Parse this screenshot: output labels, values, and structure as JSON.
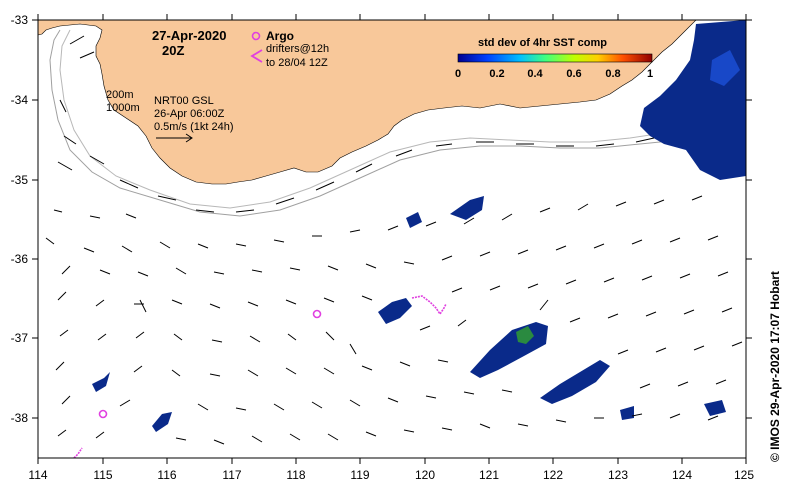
{
  "map": {
    "date": "27-Apr-2020",
    "hour": "20Z",
    "argo_label": "Argo",
    "drifters_label": "drifters@12h",
    "drifters_range": "to 28/04 12Z",
    "depth_200": "200m",
    "depth_1000": "1000m",
    "product": "NRT00 GSL",
    "product_time": "26-Apr 06:00Z",
    "scale_label": "0.5m/s (1kt 24h)",
    "colorbar_title": "std dev of 4hr SST comp",
    "colorbar_ticks": [
      "0",
      "0.2",
      "0.4",
      "0.6",
      "0.8",
      "1"
    ],
    "credit": "© IMOS 29-Apr-2020 17:07 Hobart",
    "lon_ticks": [
      "114",
      "115",
      "116",
      "117",
      "118",
      "119",
      "120",
      "121",
      "122",
      "123",
      "124",
      "125"
    ],
    "lat_ticks": [
      "-33",
      "-34",
      "-35",
      "-36",
      "-37",
      "-38"
    ],
    "lon_range": [
      114,
      125
    ],
    "lat_range": [
      -38.5,
      -33
    ],
    "colors": {
      "land": "#f8c89a",
      "argo": "#e040e0",
      "contour": "#a0a0a0",
      "sst_low": "#0a2a8a"
    }
  }
}
